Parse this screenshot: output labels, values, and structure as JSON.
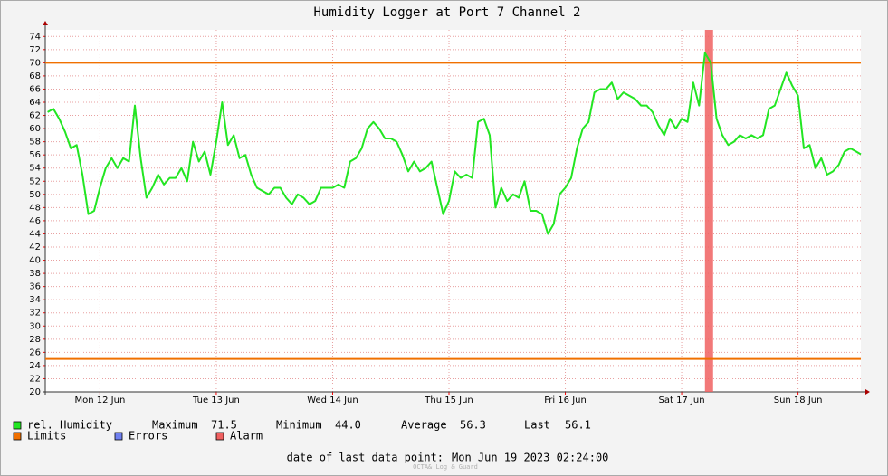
{
  "chart_data": {
    "type": "line",
    "title": "Humidity Logger at Port 7 Channel 2",
    "x": [
      12.05,
      12.1,
      12.15,
      12.2,
      12.25,
      12.3,
      12.35,
      12.4,
      12.45,
      12.5,
      12.55,
      12.6,
      12.65,
      12.7,
      12.75,
      12.8,
      12.85,
      12.9,
      12.95,
      13,
      13.05,
      13.1,
      13.15,
      13.2,
      13.25,
      13.3,
      13.35,
      13.4,
      13.45,
      13.5,
      13.55,
      13.6,
      13.65,
      13.7,
      13.75,
      13.8,
      13.85,
      13.9,
      13.95,
      14,
      14.05,
      14.1,
      14.15,
      14.2,
      14.25,
      14.3,
      14.35,
      14.4,
      14.45,
      14.5,
      14.55,
      14.6,
      14.65,
      14.7,
      14.75,
      14.8,
      14.85,
      14.9,
      14.95,
      15,
      15.05,
      15.1,
      15.15,
      15.2,
      15.25,
      15.3,
      15.35,
      15.4,
      15.45,
      15.5,
      15.55,
      15.6,
      15.65,
      15.7,
      15.75,
      15.8,
      15.85,
      15.9,
      15.95,
      16,
      16.05,
      16.1,
      16.15,
      16.2,
      16.25,
      16.3,
      16.35,
      16.4,
      16.45,
      16.5,
      16.55,
      16.6,
      16.65,
      16.7,
      16.75,
      16.8,
      16.85,
      16.9,
      16.95,
      17,
      17.05,
      17.1,
      17.15,
      17.2,
      17.25,
      17.3,
      17.35,
      17.4,
      17.45,
      17.5,
      17.55,
      17.6,
      17.65,
      17.7,
      17.75,
      17.8,
      17.85,
      17.9,
      17.95,
      18,
      18.05,
      18.1,
      18.15,
      18.2,
      18.25,
      18.3,
      18.35,
      18.4,
      18.45,
      18.5,
      18.55,
      18.6,
      18.65,
      18.7,
      18.75,
      18.8,
      18.85,
      18.9,
      18.95,
      19,
      19.04
    ],
    "series": [
      {
        "name": "rel. Humidity",
        "color": "#22e622",
        "values": [
          62.5,
          63,
          61.5,
          59.5,
          57,
          57.5,
          53,
          47,
          47.5,
          51,
          54,
          55.5,
          54,
          55.5,
          55,
          63.5,
          55.5,
          49.5,
          51,
          53,
          51.5,
          52.5,
          52.5,
          54,
          52,
          58,
          55,
          56.5,
          53,
          58,
          64,
          57.5,
          59,
          55.5,
          56,
          53,
          51,
          50.5,
          50,
          51,
          51,
          49.5,
          48.5,
          50,
          49.5,
          48.5,
          49,
          51,
          51,
          51,
          51.5,
          51,
          55,
          55.5,
          57,
          60,
          61,
          60,
          58.5,
          58.5,
          58,
          56,
          53.5,
          55,
          53.5,
          54,
          55,
          51,
          47,
          49,
          53.5,
          52.5,
          53,
          52.5,
          61,
          61.5,
          59,
          48,
          51,
          49,
          50,
          49.5,
          52,
          47.5,
          47.5,
          47,
          44,
          45.5,
          50,
          51,
          52.5,
          57,
          60,
          61,
          65.5,
          66,
          66,
          67,
          64.5,
          65.5,
          65,
          64.5,
          63.5,
          63.5,
          62.5,
          60.5,
          59,
          61.5,
          60,
          61.5,
          61,
          67,
          63.5,
          71.5,
          70,
          61.5,
          59,
          57.5,
          58,
          59,
          58.5,
          59,
          58.5,
          59,
          63,
          63.5,
          66,
          68.5,
          66.5,
          65,
          57,
          57.5,
          54,
          55.5,
          53,
          53.5,
          54.5,
          56.5,
          57,
          56.5,
          56.1
        ]
      }
    ],
    "xlim": [
      12.03,
      19.04
    ],
    "ylim": [
      20,
      75
    ],
    "yticks": [
      20,
      22,
      24,
      26,
      28,
      30,
      32,
      34,
      36,
      38,
      40,
      42,
      44,
      46,
      48,
      50,
      52,
      54,
      56,
      58,
      60,
      62,
      64,
      66,
      68,
      70,
      72,
      74
    ],
    "xticks": [
      {
        "value": 12.5,
        "label": "Mon 12 Jun"
      },
      {
        "value": 13.5,
        "label": "Tue 13 Jun"
      },
      {
        "value": 14.5,
        "label": "Wed 14 Jun"
      },
      {
        "value": 15.5,
        "label": "Thu 15 Jun"
      },
      {
        "value": 16.5,
        "label": "Fri 16 Jun"
      },
      {
        "value": 17.5,
        "label": "Sat 17 Jun"
      },
      {
        "value": 18.5,
        "label": "Sun 18 Jun"
      }
    ],
    "grid": true,
    "limits": {
      "name": "Limits",
      "color": "#f07000",
      "values": [
        70,
        25
      ]
    },
    "errors": {
      "name": "Errors",
      "color": "#7080f0"
    },
    "alarm": {
      "name": "Alarm",
      "color": "#f06060",
      "x": [
        17.7,
        17.77
      ]
    },
    "stats": [
      {
        "label": "Maximum",
        "value": "71.5"
      },
      {
        "label": "Minimum",
        "value": "44.0"
      },
      {
        "label": "Average",
        "value": "56.3"
      },
      {
        "label": "Last",
        "value": "56.1"
      }
    ],
    "footer": {
      "label": "date of last data point:",
      "value": "Mon Jun 19 2023 02:24:00"
    },
    "credit": "OCTA& Log & Guard"
  }
}
